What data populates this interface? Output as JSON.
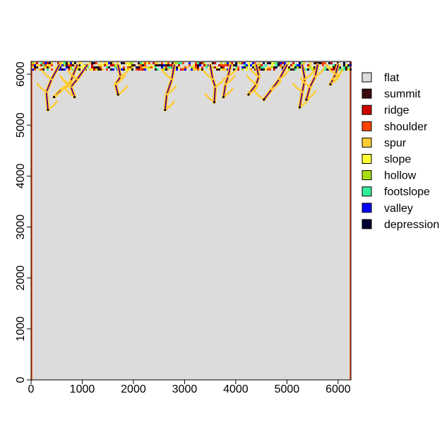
{
  "chart_data": {
    "type": "heatmap",
    "title": "",
    "xlabel": "",
    "ylabel": "",
    "xlim": [
      0,
      6250
    ],
    "ylim": [
      0,
      6250
    ],
    "x_ticks": [
      0,
      1000,
      2000,
      3000,
      4000,
      5000,
      6000
    ],
    "y_ticks": [
      0,
      1000,
      2000,
      3000,
      4000,
      5000,
      6000
    ],
    "x_tick_labels": [
      "0",
      "1000",
      "2000",
      "3000",
      "4000",
      "5000",
      "6000"
    ],
    "y_tick_labels": [
      "0",
      "1000",
      "2000",
      "3000",
      "4000",
      "5000",
      "6000"
    ],
    "background_class": "flat",
    "legend_position": "right",
    "legend": [
      {
        "label": "flat",
        "color": "#dcdcdc"
      },
      {
        "label": "summit",
        "color": "#3b0a0a"
      },
      {
        "label": "ridge",
        "color": "#cc0000"
      },
      {
        "label": "shoulder",
        "color": "#ff4500"
      },
      {
        "label": "spur",
        "color": "#ffcc33"
      },
      {
        "label": "slope",
        "color": "#ffff33"
      },
      {
        "label": "hollow",
        "color": "#aadd11"
      },
      {
        "label": "footslope",
        "color": "#33ee99"
      },
      {
        "label": "valley",
        "color": "#0000ff"
      },
      {
        "label": "depression",
        "color": "#000033"
      }
    ],
    "edge_band": {
      "y_range": [
        6080,
        6250
      ],
      "note": "mixed landform classes along top edge"
    },
    "channels": [
      {
        "x0": 550,
        "y0": 6180,
        "points": [
          [
            400,
            5900
          ],
          [
            300,
            5650
          ],
          [
            330,
            5300
          ]
        ]
      },
      {
        "x0": 900,
        "y0": 6180,
        "points": [
          [
            750,
            5800
          ],
          [
            600,
            5700
          ],
          [
            450,
            5550
          ]
        ]
      },
      {
        "x0": 1100,
        "y0": 6180,
        "points": [
          [
            900,
            5900
          ],
          [
            780,
            5750
          ],
          [
            850,
            5550
          ]
        ]
      },
      {
        "x0": 1700,
        "y0": 6180,
        "points": [
          [
            1750,
            5950
          ],
          [
            1650,
            5800
          ],
          [
            1700,
            5600
          ]
        ]
      },
      {
        "x0": 2800,
        "y0": 6180,
        "points": [
          [
            2750,
            5900
          ],
          [
            2650,
            5600
          ],
          [
            2620,
            5300
          ]
        ]
      },
      {
        "x0": 3500,
        "y0": 6180,
        "points": [
          [
            3550,
            5900
          ],
          [
            3600,
            5750
          ],
          [
            3580,
            5450
          ]
        ]
      },
      {
        "x0": 3900,
        "y0": 6180,
        "points": [
          [
            3850,
            5950
          ],
          [
            3800,
            5800
          ],
          [
            3760,
            5550
          ]
        ]
      },
      {
        "x0": 4400,
        "y0": 6180,
        "points": [
          [
            4450,
            5950
          ],
          [
            4400,
            5800
          ],
          [
            4250,
            5600
          ]
        ]
      },
      {
        "x0": 5000,
        "y0": 6180,
        "points": [
          [
            4850,
            5900
          ],
          [
            4700,
            5700
          ],
          [
            4550,
            5500
          ]
        ]
      },
      {
        "x0": 5300,
        "y0": 6180,
        "points": [
          [
            5350,
            5900
          ],
          [
            5300,
            5650
          ],
          [
            5250,
            5350
          ]
        ]
      },
      {
        "x0": 5600,
        "y0": 6180,
        "points": [
          [
            5550,
            5950
          ],
          [
            5450,
            5750
          ],
          [
            5380,
            5500
          ]
        ]
      },
      {
        "x0": 6000,
        "y0": 6180,
        "points": [
          [
            5950,
            6000
          ],
          [
            5900,
            5900
          ],
          [
            5850,
            5800
          ]
        ]
      }
    ]
  }
}
